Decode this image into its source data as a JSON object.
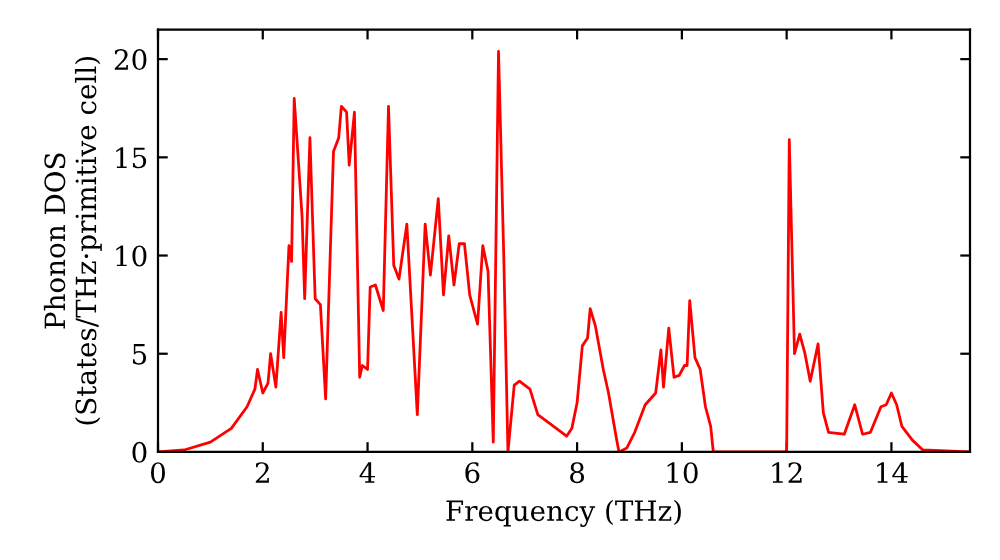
{
  "chart_data": {
    "type": "line",
    "xlabel": "Frequency (THz)",
    "ylabel": "Phonon DOS\n(States/THz·primitive cell)",
    "xlim": [
      0,
      15.5
    ],
    "ylim": [
      0,
      21.5
    ],
    "xticks": [
      0,
      2,
      4,
      6,
      8,
      10,
      12,
      14
    ],
    "yticks": [
      0,
      5,
      10,
      15,
      20
    ],
    "marker": "none",
    "line_style": "solid",
    "series": [
      {
        "color": "#ff0000",
        "x": [
          0,
          0.5,
          1,
          1.4,
          1.7,
          1.85,
          1.9,
          2.0,
          2.1,
          2.15,
          2.25,
          2.35,
          2.4,
          2.5,
          2.55,
          2.6,
          2.75,
          2.8,
          2.9,
          3.0,
          3.1,
          3.2,
          3.35,
          3.45,
          3.5,
          3.6,
          3.65,
          3.75,
          3.85,
          3.9,
          4.0,
          4.05,
          4.15,
          4.3,
          4.4,
          4.5,
          4.6,
          4.75,
          4.95,
          5.1,
          5.2,
          5.35,
          5.45,
          5.55,
          5.65,
          5.75,
          5.85,
          5.95,
          6.1,
          6.2,
          6.3,
          6.4,
          6.5,
          6.6,
          6.68,
          6.8,
          6.9,
          7.1,
          7.25,
          7.5,
          7.8,
          7.9,
          8.0,
          8.1,
          8.2,
          8.25,
          8.35,
          8.5,
          8.6,
          8.75,
          8.8,
          8.95,
          9.1,
          9.3,
          9.5,
          9.6,
          9.65,
          9.75,
          9.85,
          9.95,
          10.05,
          10.1,
          10.15,
          10.25,
          10.35,
          10.45,
          10.55,
          10.6,
          12.0,
          12.05,
          12.15,
          12.25,
          12.35,
          12.45,
          12.6,
          12.7,
          12.8,
          13.1,
          13.3,
          13.45,
          13.6,
          13.8,
          13.9,
          14.0,
          14.1,
          14.2,
          14.4,
          14.6,
          15.5
        ],
        "values": [
          0,
          0.1,
          0.5,
          1.2,
          2.3,
          3.2,
          4.2,
          3.0,
          3.5,
          5.0,
          3.3,
          7.1,
          4.8,
          10.5,
          9.7,
          18.0,
          12.0,
          7.8,
          16.0,
          7.8,
          7.5,
          2.7,
          15.3,
          16.0,
          17.6,
          17.3,
          14.6,
          17.3,
          3.8,
          4.4,
          4.2,
          8.4,
          8.5,
          7.2,
          17.6,
          9.5,
          8.8,
          11.6,
          1.9,
          11.6,
          9.0,
          12.9,
          8.0,
          11.0,
          8.5,
          10.6,
          10.6,
          8.0,
          6.5,
          10.5,
          9.2,
          0.5,
          20.4,
          10.0,
          0,
          3.4,
          3.6,
          3.2,
          1.9,
          1.4,
          0.8,
          1.2,
          2.5,
          5.4,
          5.8,
          7.3,
          6.4,
          4.2,
          3.0,
          0.7,
          0,
          0.2,
          1.0,
          2.4,
          3.0,
          5.2,
          3.3,
          6.3,
          3.8,
          3.9,
          4.4,
          4.4,
          7.7,
          4.8,
          4.2,
          2.3,
          1.3,
          0,
          0,
          15.9,
          5.0,
          6.0,
          5.0,
          3.6,
          5.5,
          2.0,
          1.0,
          0.9,
          2.4,
          0.9,
          1.0,
          2.3,
          2.4,
          3.0,
          2.4,
          1.3,
          0.6,
          0.1,
          0
        ]
      }
    ]
  }
}
